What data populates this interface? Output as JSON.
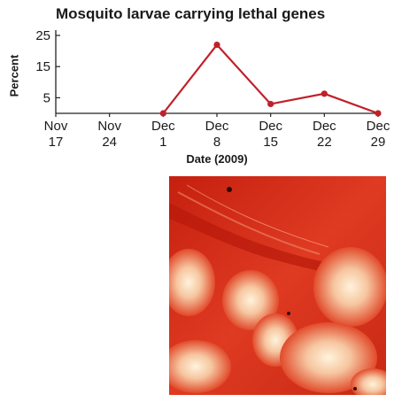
{
  "chart_data": {
    "type": "line",
    "title": "Mosquito larvae carrying lethal genes",
    "xlabel": "Date (2009)",
    "ylabel": "Percent",
    "x_ticks": [
      {
        "top": "Nov",
        "bottom": "17"
      },
      {
        "top": "Nov",
        "bottom": "24"
      },
      {
        "top": "Dec",
        "bottom": "1"
      },
      {
        "top": "Dec",
        "bottom": "8"
      },
      {
        "top": "Dec",
        "bottom": "15"
      },
      {
        "top": "Dec",
        "bottom": "22"
      },
      {
        "top": "Dec",
        "bottom": "29"
      }
    ],
    "y_ticks": [
      5,
      15,
      25
    ],
    "ylim": [
      0,
      25
    ],
    "grid": false,
    "series": [
      {
        "x": [
          "2009-12-01",
          "2009-12-08",
          "2009-12-15",
          "2009-12-22",
          "2009-12-29"
        ],
        "values": [
          0,
          22,
          3,
          6.3,
          0
        ]
      }
    ],
    "line_color": "#c0202a"
  },
  "photo": {
    "subject": "micrograph of mosquito larvae",
    "colors": {
      "base": "#d42a1a",
      "highlight": "#ffe8c8"
    }
  }
}
